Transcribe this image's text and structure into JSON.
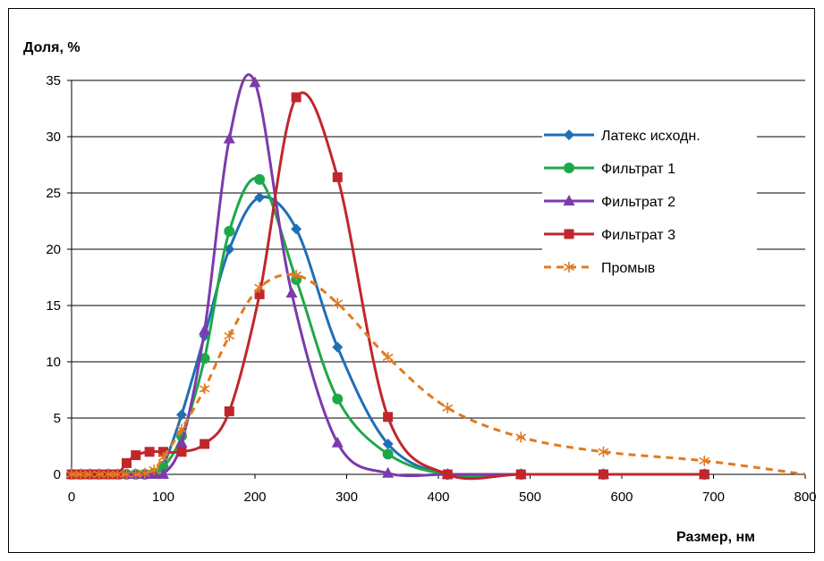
{
  "chart_data": {
    "type": "line",
    "ylabel": "Доля, %",
    "xlabel": "Размер, нм",
    "xlim": [
      0,
      800
    ],
    "ylim": [
      0,
      35
    ],
    "xticks": [
      "0",
      "100",
      "200",
      "300",
      "400",
      "500",
      "600",
      "700",
      "800"
    ],
    "yticks": [
      "0",
      "5",
      "10",
      "15",
      "20",
      "25",
      "30",
      "35"
    ],
    "grid": "horizontal",
    "legend_position": "right",
    "series": [
      {
        "name": "Латекс исходн.",
        "color": "#1f6fb5",
        "marker": "diamond",
        "dash": "solid",
        "x": [
          0,
          10,
          20,
          30,
          40,
          50,
          60,
          70,
          80,
          90,
          100,
          120,
          145,
          172,
          205,
          245,
          290,
          345,
          410,
          490,
          580,
          690
        ],
        "y": [
          0,
          0,
          0,
          0,
          0,
          0,
          0,
          0,
          0,
          0.1,
          0.8,
          5.3,
          12.3,
          20.0,
          24.6,
          21.8,
          11.3,
          2.7,
          0,
          0,
          0,
          0
        ]
      },
      {
        "name": "Фильтрат 1",
        "color": "#1fa84a",
        "marker": "circle",
        "dash": "solid",
        "x": [
          0,
          10,
          20,
          30,
          40,
          50,
          60,
          70,
          80,
          90,
          100,
          120,
          145,
          172,
          205,
          245,
          290,
          345,
          410,
          490,
          580,
          690
        ],
        "y": [
          0,
          0,
          0,
          0,
          0,
          0,
          0,
          0,
          0,
          0.1,
          0.6,
          3.4,
          10.3,
          21.6,
          26.2,
          17.3,
          6.7,
          1.8,
          0,
          0,
          0,
          0
        ]
      },
      {
        "name": "Фильтрат 2",
        "color": "#7c3aad",
        "marker": "triangle",
        "dash": "solid",
        "x": [
          0,
          10,
          20,
          30,
          40,
          50,
          60,
          70,
          80,
          90,
          100,
          120,
          145,
          172,
          200,
          240,
          290,
          345,
          410,
          490,
          580,
          690
        ],
        "y": [
          0,
          0,
          0,
          0,
          0,
          0,
          0,
          0,
          0,
          0,
          0,
          2.8,
          12.8,
          29.8,
          34.8,
          16.1,
          2.8,
          0.1,
          0,
          0,
          0,
          0
        ]
      },
      {
        "name": "Фильтрат 3",
        "color": "#c0272d",
        "marker": "square",
        "dash": "solid",
        "x": [
          0,
          10,
          20,
          30,
          40,
          50,
          60,
          70,
          85,
          100,
          120,
          145,
          172,
          205,
          245,
          290,
          345,
          410,
          490,
          580,
          690
        ],
        "y": [
          0,
          0,
          0,
          0,
          0,
          0,
          1.0,
          1.7,
          2.0,
          2.0,
          2.0,
          2.7,
          5.6,
          16.0,
          33.5,
          26.4,
          5.1,
          0,
          0,
          0,
          0
        ]
      },
      {
        "name": "Промыв",
        "color": "#e07b22",
        "marker": "asterisk",
        "dash": "dashed",
        "x": [
          0,
          10,
          20,
          30,
          40,
          50,
          60,
          70,
          80,
          90,
          100,
          120,
          145,
          172,
          205,
          245,
          290,
          345,
          410,
          490,
          580,
          690,
          800
        ],
        "y": [
          0,
          0,
          0,
          0,
          0,
          0,
          0,
          0,
          0.1,
          0.4,
          1.5,
          4.0,
          7.6,
          12.3,
          16.6,
          17.7,
          15.2,
          10.4,
          5.9,
          3.3,
          2.0,
          1.2,
          0
        ]
      }
    ]
  }
}
